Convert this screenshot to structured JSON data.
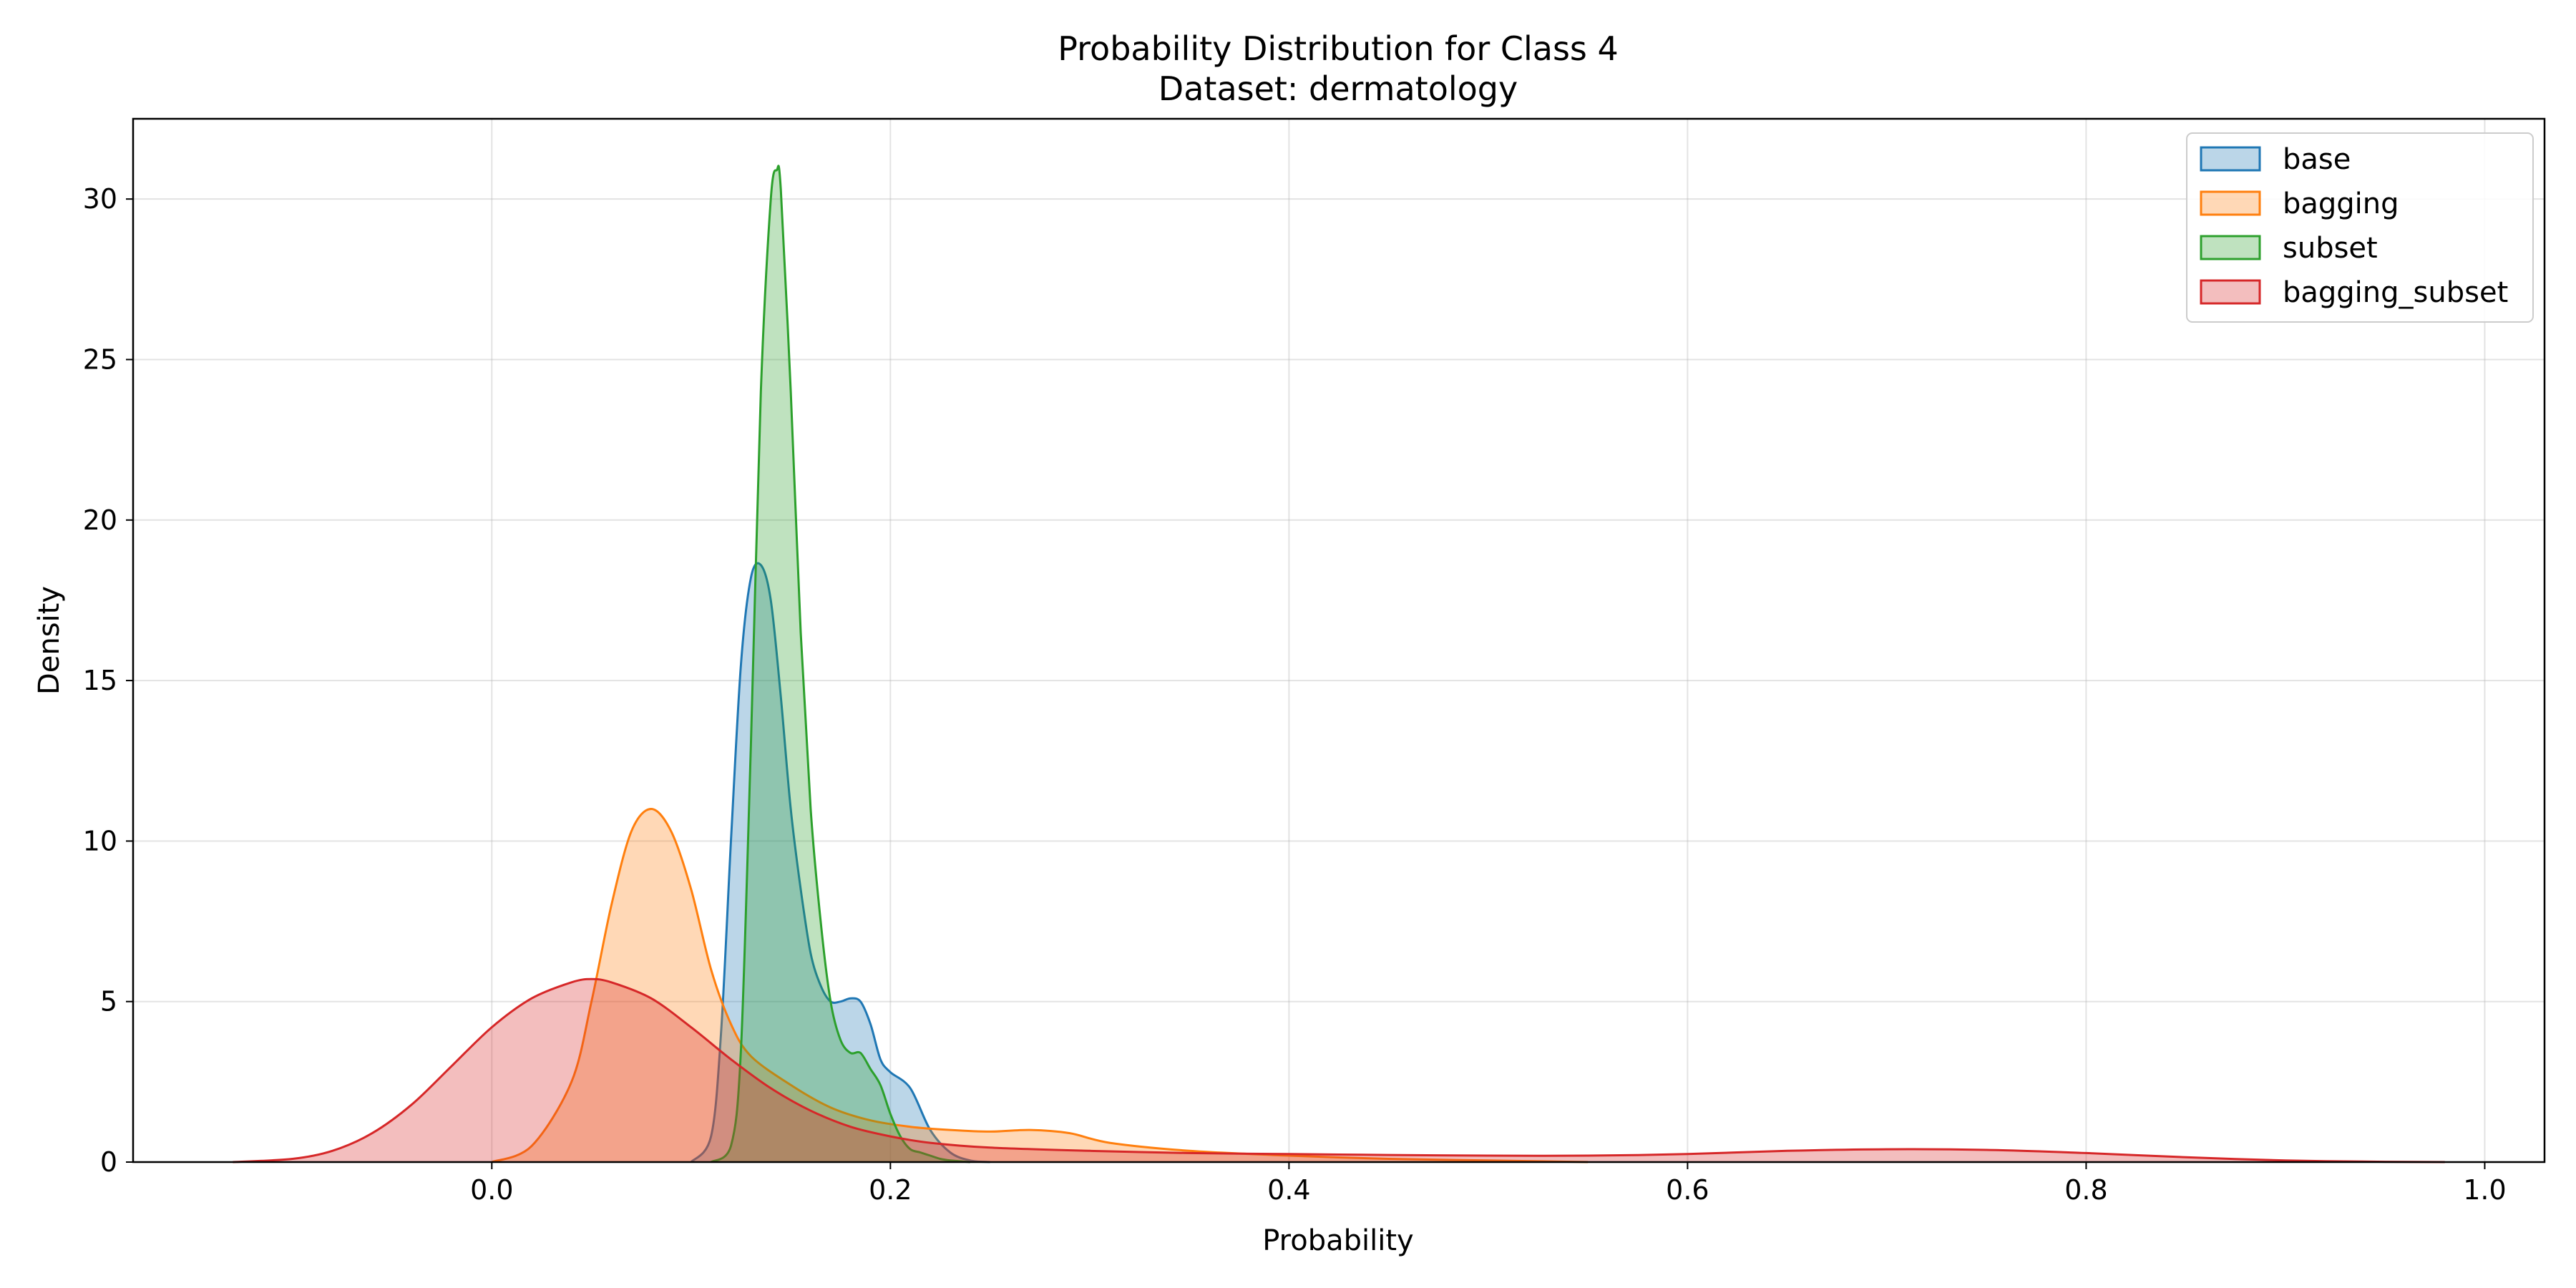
{
  "chart_data": {
    "type": "area",
    "title": "Probability Distribution for Class 4",
    "subtitle": "Dataset: dermatology",
    "xlabel": "Probability",
    "ylabel": "Density",
    "xlim": [
      -0.18,
      1.03
    ],
    "ylim": [
      0,
      32.5
    ],
    "xticks": [
      0.0,
      0.2,
      0.4,
      0.6,
      0.8,
      1.0
    ],
    "xtick_labels": [
      "0.0",
      "0.2",
      "0.4",
      "0.6",
      "0.8",
      "1.0"
    ],
    "yticks": [
      0,
      5,
      10,
      15,
      20,
      25,
      30
    ],
    "ytick_labels": [
      "0",
      "5",
      "10",
      "15",
      "20",
      "25",
      "30"
    ],
    "grid": true,
    "legend_position": "top-right",
    "series": [
      {
        "name": "base",
        "color": "#1f77b4",
        "x": [
          0.1,
          0.11,
          0.115,
          0.12,
          0.125,
          0.13,
          0.135,
          0.14,
          0.145,
          0.15,
          0.155,
          0.16,
          0.165,
          0.17,
          0.175,
          0.18,
          0.185,
          0.19,
          0.195,
          0.2,
          0.21,
          0.22,
          0.23,
          0.24,
          0.25
        ],
        "y": [
          0,
          0.8,
          4.0,
          10.0,
          15.5,
          18.2,
          18.6,
          17.5,
          14.5,
          11.0,
          8.5,
          6.5,
          5.5,
          5.0,
          5.0,
          5.1,
          5.0,
          4.3,
          3.2,
          2.8,
          2.3,
          1.0,
          0.3,
          0.05,
          0
        ]
      },
      {
        "name": "bagging",
        "color": "#ff7f0e",
        "x": [
          0.0,
          0.02,
          0.04,
          0.05,
          0.06,
          0.07,
          0.08,
          0.09,
          0.1,
          0.11,
          0.12,
          0.13,
          0.15,
          0.17,
          0.19,
          0.21,
          0.23,
          0.25,
          0.27,
          0.29,
          0.31,
          0.35,
          0.4,
          0.45,
          0.5,
          0.55
        ],
        "y": [
          0,
          0.5,
          2.5,
          5.0,
          8.0,
          10.3,
          11.0,
          10.3,
          8.5,
          6.0,
          4.3,
          3.3,
          2.4,
          1.7,
          1.3,
          1.1,
          1.0,
          0.95,
          1.0,
          0.9,
          0.6,
          0.35,
          0.2,
          0.1,
          0.05,
          0
        ]
      },
      {
        "name": "subset",
        "color": "#2ca02c",
        "x": [
          0.11,
          0.12,
          0.125,
          0.13,
          0.135,
          0.14,
          0.143,
          0.145,
          0.15,
          0.155,
          0.16,
          0.165,
          0.17,
          0.175,
          0.18,
          0.185,
          0.19,
          0.195,
          0.2,
          0.205,
          0.21,
          0.215,
          0.22,
          0.225,
          0.23,
          0.24
        ],
        "y": [
          0,
          0.5,
          3.5,
          13.0,
          24.0,
          30.0,
          30.9,
          30.3,
          24.0,
          16.5,
          11.0,
          7.5,
          5.0,
          3.8,
          3.4,
          3.4,
          2.9,
          2.4,
          1.5,
          0.8,
          0.4,
          0.3,
          0.2,
          0.1,
          0.05,
          0
        ]
      },
      {
        "name": "bagging_subset",
        "color": "#d62728",
        "x": [
          -0.13,
          -0.1,
          -0.08,
          -0.06,
          -0.04,
          -0.02,
          0.0,
          0.02,
          0.04,
          0.05,
          0.06,
          0.08,
          0.1,
          0.12,
          0.14,
          0.16,
          0.18,
          0.2,
          0.22,
          0.25,
          0.3,
          0.35,
          0.4,
          0.45,
          0.5,
          0.55,
          0.6,
          0.65,
          0.7,
          0.75,
          0.8,
          0.85,
          0.9,
          0.95,
          0.98
        ],
        "y": [
          0,
          0.1,
          0.35,
          0.9,
          1.8,
          3.0,
          4.2,
          5.1,
          5.6,
          5.7,
          5.6,
          5.1,
          4.2,
          3.2,
          2.3,
          1.6,
          1.1,
          0.8,
          0.6,
          0.45,
          0.35,
          0.28,
          0.25,
          0.22,
          0.2,
          0.2,
          0.25,
          0.35,
          0.4,
          0.38,
          0.28,
          0.15,
          0.05,
          0.01,
          0
        ]
      }
    ]
  }
}
